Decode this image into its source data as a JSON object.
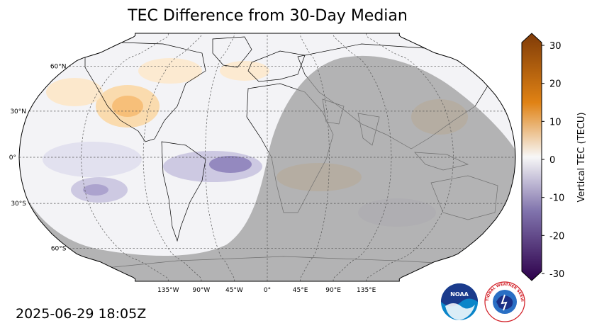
{
  "title": "TEC Difference from 30-Day Median",
  "timestamp": "2025-06-29 18:05Z",
  "map": {
    "projection": "robinson",
    "gridlines": true,
    "lat_labels": [
      {
        "lat": 60,
        "text": "60°N"
      },
      {
        "lat": 30,
        "text": "30°N"
      },
      {
        "lat": 0,
        "text": "0°"
      },
      {
        "lat": -30,
        "text": "30°S"
      },
      {
        "lat": -60,
        "text": "60°S"
      }
    ],
    "lon_labels": [
      {
        "lon": -135,
        "text": "135°W"
      },
      {
        "lon": -90,
        "text": "90°W"
      },
      {
        "lon": -45,
        "text": "45°W"
      },
      {
        "lon": 0,
        "text": "0°"
      },
      {
        "lon": 45,
        "text": "45°E"
      },
      {
        "lon": 90,
        "text": "90°E"
      },
      {
        "lon": 135,
        "text": "135°E"
      }
    ],
    "night_shading": true
  },
  "colorbar": {
    "label": "Vertical TEC (TECU)",
    "ticks": [
      {
        "value": 30,
        "text": "30"
      },
      {
        "value": 20,
        "text": "20"
      },
      {
        "value": 10,
        "text": "10"
      },
      {
        "value": 0,
        "text": "0"
      },
      {
        "value": -10,
        "text": "-10"
      },
      {
        "value": -20,
        "text": "-20"
      },
      {
        "value": -30,
        "text": "-30"
      }
    ],
    "range": [
      -30,
      30
    ],
    "colors": {
      "high": "#7f3b08",
      "mid_high": "#e08214",
      "zero": "#f7f7f7",
      "mid_low": "#8073ac",
      "low": "#2d004b"
    }
  },
  "logos": {
    "noaa": "NOAA",
    "nws": "NATIONAL WEATHER SERVICE"
  }
}
